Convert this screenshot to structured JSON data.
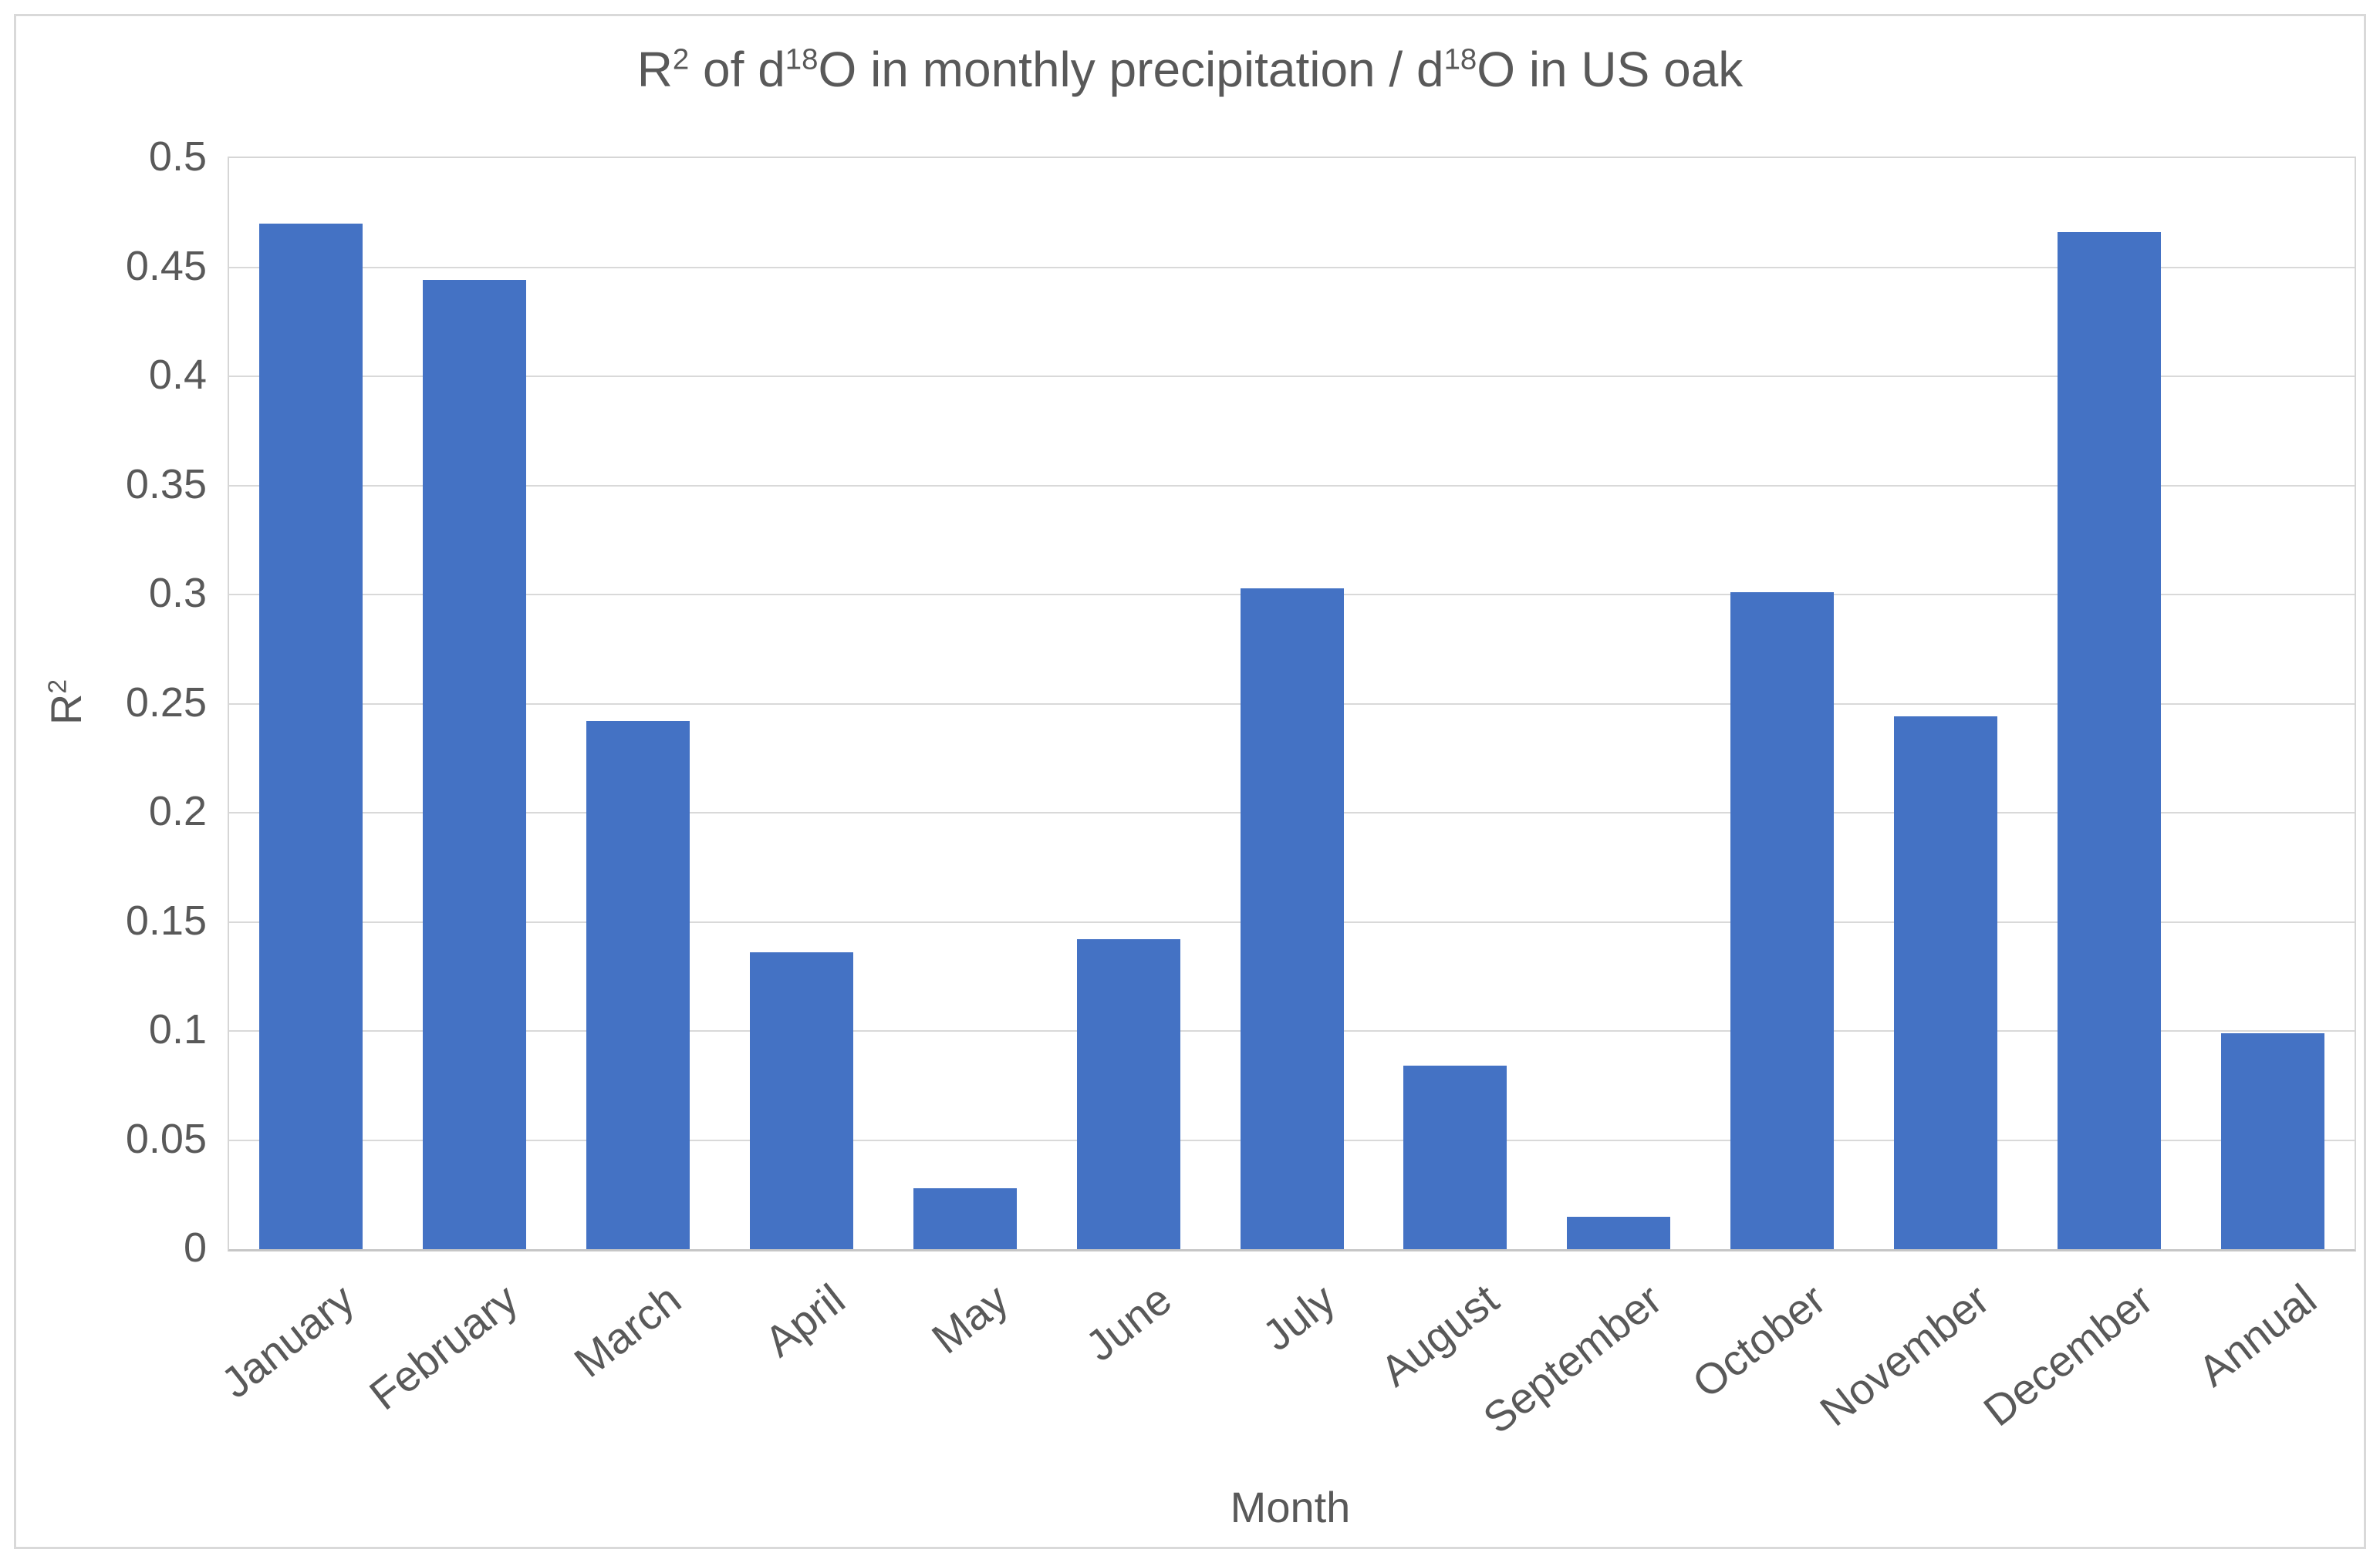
{
  "chart_data": {
    "type": "bar",
    "title": "R² of d¹⁸O in monthly precipitation / d¹⁸O in US oak",
    "title_runs": [
      {
        "text": "R"
      },
      {
        "text": "2",
        "sup": true
      },
      {
        "text": " of d"
      },
      {
        "text": "18",
        "sup": true
      },
      {
        "text": "O in monthly precipitation / d"
      },
      {
        "text": "18",
        "sup": true
      },
      {
        "text": "O in US oak"
      }
    ],
    "xlabel": "Month",
    "ylabel": "R²",
    "ylabel_runs": [
      {
        "text": "R"
      },
      {
        "text": "2",
        "sup": true
      }
    ],
    "categories": [
      "January",
      "February",
      "March",
      "April",
      "May",
      "June",
      "July",
      "August",
      "September",
      "October",
      "November",
      "December",
      "Annual"
    ],
    "values": [
      0.47,
      0.444,
      0.242,
      0.136,
      0.028,
      0.142,
      0.303,
      0.084,
      0.015,
      0.301,
      0.244,
      0.466,
      0.099
    ],
    "ylim": [
      0,
      0.5
    ],
    "y_ticks": [
      {
        "value": 0,
        "label": "0"
      },
      {
        "value": 0.05,
        "label": "0.05"
      },
      {
        "value": 0.1,
        "label": "0.1"
      },
      {
        "value": 0.15,
        "label": "0.15"
      },
      {
        "value": 0.2,
        "label": "0.2"
      },
      {
        "value": 0.25,
        "label": "0.25"
      },
      {
        "value": 0.3,
        "label": "0.3"
      },
      {
        "value": 0.35,
        "label": "0.35"
      },
      {
        "value": 0.4,
        "label": "0.4"
      },
      {
        "value": 0.45,
        "label": "0.45"
      },
      {
        "value": 0.5,
        "label": "0.5"
      }
    ],
    "grid": true,
    "legend": false,
    "bar_color": "#4472C4",
    "text_color": "#595959",
    "gridline_color": "#D9D9D9",
    "chart_border_color": "#D9D9D9"
  }
}
